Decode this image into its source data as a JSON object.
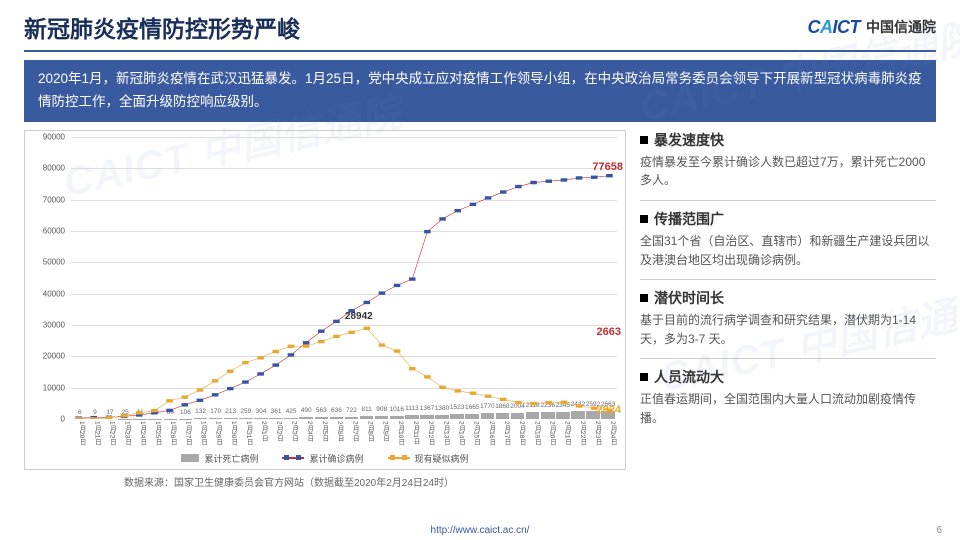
{
  "header": {
    "title": "新冠肺炎疫情防控形势严峻",
    "logo_mark": "CAICT",
    "logo_text": "中国信通院"
  },
  "banner": "2020年1月，新冠肺炎疫情在武汉迅猛暴发。1月25日，党中央成立应对疫情工作领导小组，在中央政治局常务委员会领导下开展新型冠状病毒肺炎疫情防控工作，全面升级防控响应级别。",
  "chart": {
    "type": "combo-bar-line",
    "ylim": [
      0,
      90000
    ],
    "ytick_step": 10000,
    "grid_color": "#dddddd",
    "bar_color": "#a8a8a8",
    "line_confirmed": {
      "color": "#c22f2f",
      "marker": "square",
      "marker_color": "#3853a4"
    },
    "line_suspected": {
      "color": "#e8a832",
      "marker": "square",
      "marker_color": "#e8a832"
    },
    "dates": [
      "1月20日",
      "1月21日",
      "1月22日",
      "1月23日",
      "1月24日",
      "1月25日",
      "1月26日",
      "1月27日",
      "1月28日",
      "1月29日",
      "1月30日",
      "1月31日",
      "2月1日",
      "2月2日",
      "2月3日",
      "2月4日",
      "2月5日",
      "2月6日",
      "2月7日",
      "2月8日",
      "2月9日",
      "2月10日",
      "2月11日",
      "2月12日",
      "2月13日",
      "2月14日",
      "2月15日",
      "2月16日",
      "2月17日",
      "2月18日",
      "2月19日",
      "2月20日",
      "2月21日",
      "2月22日",
      "2月23日",
      "2月24日"
    ],
    "bars_deaths": [
      6,
      9,
      17,
      25,
      41,
      56,
      80,
      106,
      132,
      170,
      213,
      259,
      304,
      361,
      425,
      490,
      563,
      636,
      722,
      811,
      908,
      1016,
      1113,
      1367,
      1380,
      1523,
      1665,
      1770,
      1868,
      2004,
      2118,
      2236,
      2345,
      2442,
      2592,
      2663
    ],
    "line_confirmed_values": [
      291,
      440,
      571,
      830,
      1287,
      1975,
      2744,
      4515,
      5974,
      7711,
      9692,
      11791,
      14380,
      17205,
      20438,
      24324,
      28018,
      31161,
      34546,
      37198,
      40171,
      42638,
      44653,
      59804,
      63851,
      66492,
      68500,
      70548,
      72436,
      74185,
      75465,
      75891,
      76288,
      76936,
      77150,
      77658
    ],
    "line_suspected_values": [
      54,
      37,
      393,
      1072,
      1965,
      2684,
      5794,
      6973,
      9239,
      12167,
      15238,
      17988,
      19544,
      21558,
      23214,
      23260,
      24702,
      26359,
      27657,
      28942,
      23589,
      21675,
      16067,
      13435,
      10109,
      8969,
      8228,
      7264,
      6242,
      5248,
      4922,
      5206,
      5365,
      4148,
      3434,
      2824
    ],
    "end_labels": {
      "confirmed": {
        "text": "77658",
        "color": "#c22f2f"
      },
      "deaths": {
        "text": "2663",
        "color": "#c22f2f"
      },
      "suspected": {
        "text": "2824",
        "color": "#e8a832"
      }
    },
    "mid_label": {
      "text": "28942"
    },
    "legend": {
      "bar": "累计死亡病例",
      "confirmed": "累计确诊病例",
      "suspected": "现有疑似病例"
    },
    "source": "数据来源：国家卫生健康委员会官方网站（数据截至2020年2月24日24时）"
  },
  "points": [
    {
      "title": "暴发速度快",
      "body": "疫情暴发至今累计确诊人数已超过7万，累计死亡2000多人。"
    },
    {
      "title": "传播范围广",
      "body": "全国31个省（自治区、直辖市）和新疆生产建设兵团以及港澳台地区均出现确诊病例。"
    },
    {
      "title": "潜伏时间长",
      "body": "基于目前的流行病学调查和研究结果，潜伏期为1-14 天，多为3-7 天。"
    },
    {
      "title": "人员流动大",
      "body": "正值春运期间，全国范围内大量人口流动加剧疫情传播。"
    }
  ],
  "footer": {
    "url": "http://www.caict.ac.cn/",
    "page": "6"
  },
  "watermark": "CAICT 中国信通院"
}
